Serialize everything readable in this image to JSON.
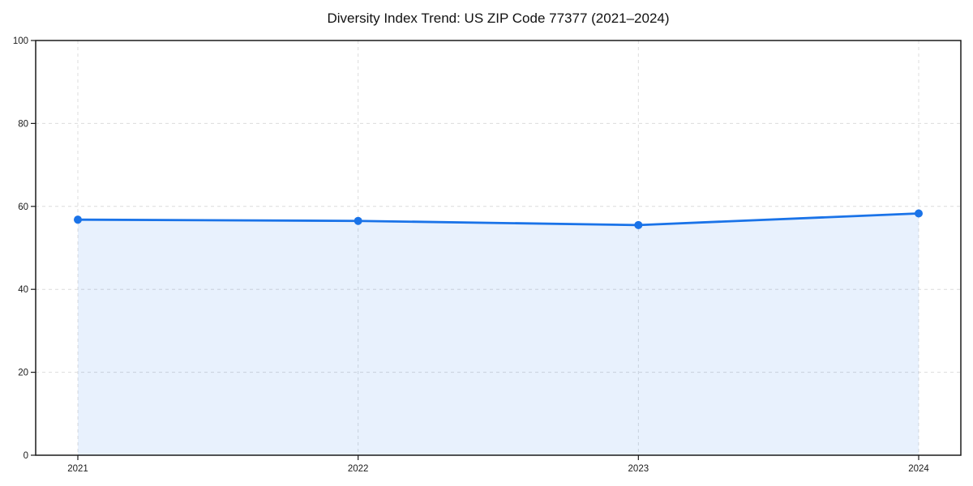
{
  "chart": {
    "title": "Diversity Index Trend: US ZIP Code 77377 (2021–2024)"
  },
  "chart_data": {
    "type": "line",
    "title": "Diversity Index Trend: US ZIP Code 77377 (2021–2024)",
    "categories": [
      "2021",
      "2022",
      "2023",
      "2024"
    ],
    "series": [
      {
        "name": "Diversity Index",
        "values": [
          56.8,
          56.5,
          55.5,
          58.3
        ]
      }
    ],
    "xlabel": "",
    "ylabel": "",
    "ylim": [
      0,
      100
    ],
    "yticks": [
      0,
      20,
      40,
      60,
      80,
      100
    ],
    "grid": true,
    "grid_style": "dashed",
    "legend_position": "none",
    "area_fill": true,
    "marker": "circle",
    "colors": {
      "line": "#1a73e8",
      "marker": "#1a73e8",
      "fill": "rgba(26,115,232,0.10)",
      "grid": "#dcdcdc",
      "axis": "#1a1a1a",
      "text": "#1a1a1a",
      "background": "#ffffff"
    }
  }
}
